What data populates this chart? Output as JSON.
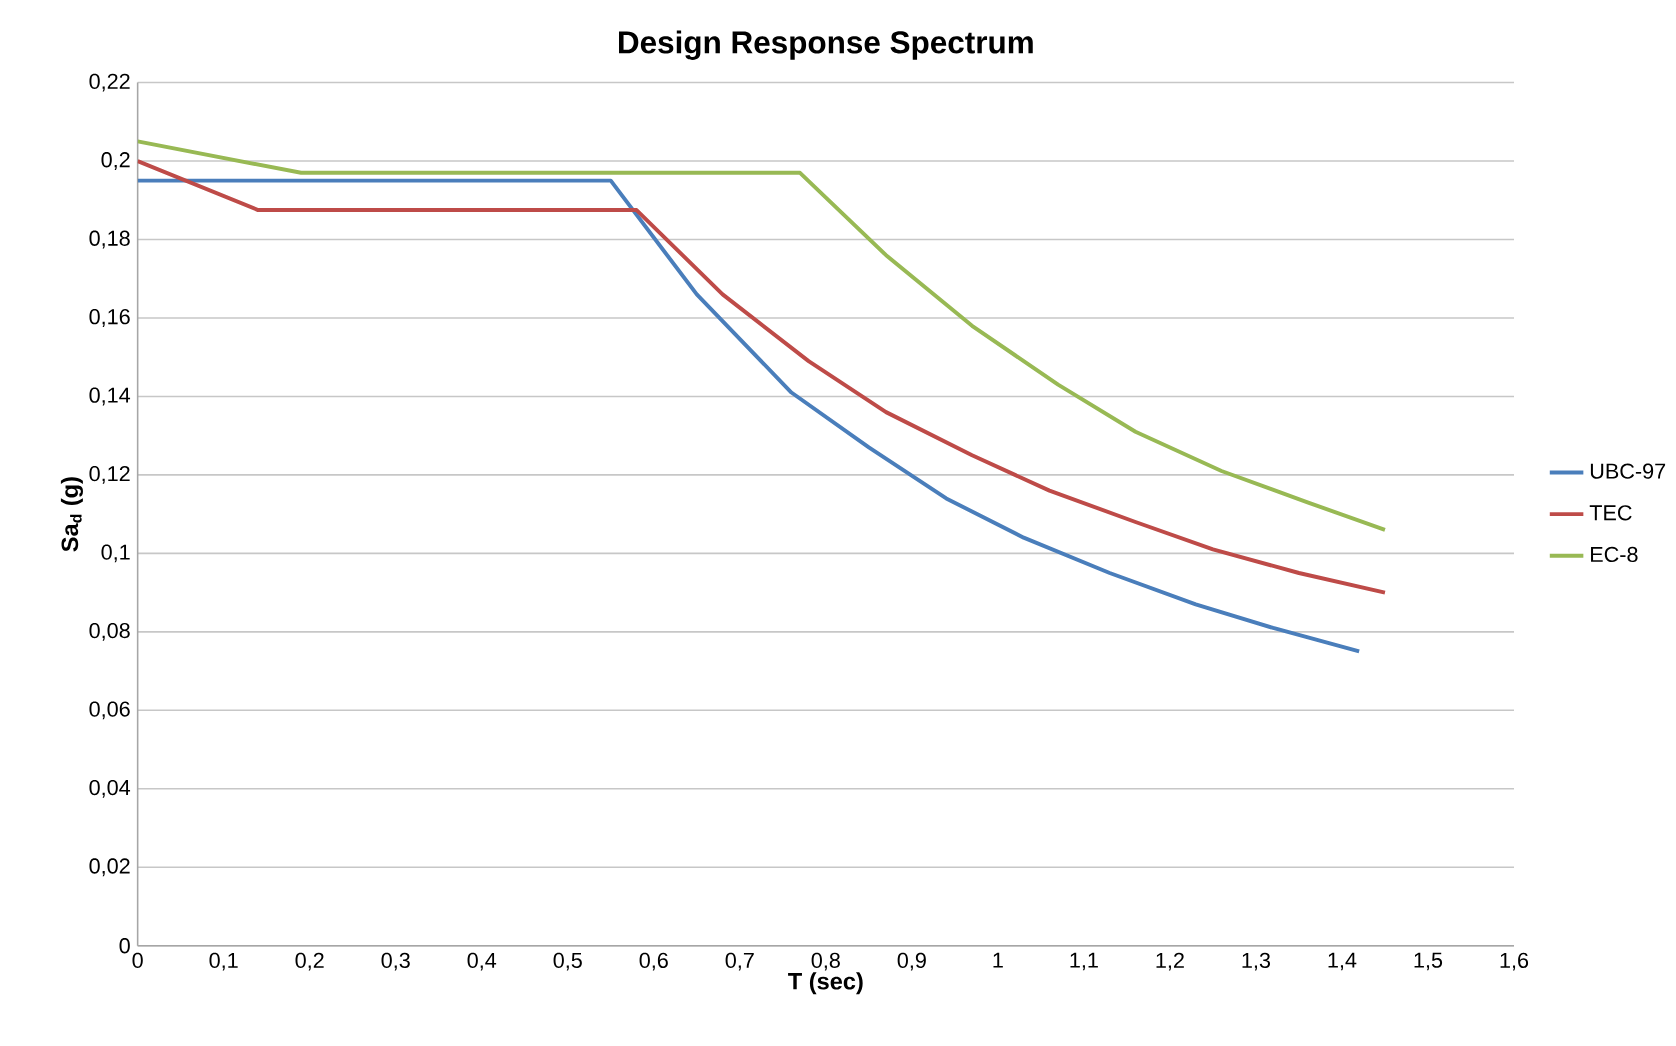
{
  "chart_data": {
    "type": "line",
    "title": "Design Response Spectrum",
    "xlabel": "T (sec)",
    "ylabel": "Sa$_{d}$ (g)",
    "xlim": [
      0,
      1.6
    ],
    "ylim": [
      0,
      0.22
    ],
    "xticks": [
      0,
      {
        "value": 0.1,
        "label": "0,1"
      },
      {
        "value": 0.2,
        "label": "0,2"
      },
      {
        "value": 0.3,
        "label": "0,3"
      },
      {
        "value": 0.4,
        "label": "0,4"
      },
      {
        "value": 0.5,
        "label": "0,5"
      },
      {
        "value": 0.6,
        "label": "0,6"
      },
      {
        "value": 0.7,
        "label": "0,7"
      },
      {
        "value": 0.8,
        "label": "0,8"
      },
      {
        "value": 0.9,
        "label": "0,9"
      },
      1,
      {
        "value": 1.1,
        "label": "1,1"
      },
      {
        "value": 1.2,
        "label": "1,2"
      },
      {
        "value": 1.3,
        "label": "1,3"
      },
      {
        "value": 1.4,
        "label": "1,4"
      },
      {
        "value": 1.5,
        "label": "1,5"
      },
      {
        "value": 1.6,
        "label": "1,6"
      }
    ],
    "yticks": [
      0,
      {
        "value": 0.02,
        "label": "0,02"
      },
      {
        "value": 0.04,
        "label": "0,04"
      },
      {
        "value": 0.06,
        "label": "0,06"
      },
      {
        "value": 0.08,
        "label": "0,08"
      },
      {
        "value": 0.1,
        "label": "0,1"
      },
      {
        "value": 0.12,
        "label": "0,12"
      },
      {
        "value": 0.14,
        "label": "0,14"
      },
      {
        "value": 0.16,
        "label": "0,16"
      },
      {
        "value": 0.18,
        "label": "0,18"
      },
      {
        "value": 0.2,
        "label": "0,2"
      },
      {
        "value": 0.22,
        "label": "0,22"
      }
    ],
    "grid": "y",
    "legend": "right",
    "marker": "none",
    "line_style": "solid",
    "series": [
      {
        "name": "UBC-97",
        "color": "#4a7ebb",
        "x": [
          0,
          0.55,
          0.65,
          0.76,
          0.85,
          0.94,
          1.03,
          1.13,
          1.23,
          1.32,
          1.42
        ],
        "values": [
          0.195,
          0.195,
          0.166,
          0.141,
          0.127,
          0.114,
          0.104,
          0.095,
          0.087,
          0.081,
          0.075
        ]
      },
      {
        "name": "TEC",
        "color": "#be4b48",
        "x": [
          0,
          0.14,
          0.58,
          0.68,
          0.78,
          0.87,
          0.97,
          1.06,
          1.16,
          1.25,
          1.35,
          1.45
        ],
        "values": [
          0.2,
          0.1875,
          0.1875,
          0.166,
          0.149,
          0.136,
          0.125,
          0.116,
          0.108,
          0.101,
          0.095,
          0.09
        ]
      },
      {
        "name": "EC-8",
        "color": "#98b954",
        "x": [
          0,
          0.19,
          0.77,
          0.87,
          0.97,
          1.07,
          1.16,
          1.26,
          1.36,
          1.45
        ],
        "values": [
          0.205,
          0.197,
          0.197,
          0.176,
          0.158,
          0.143,
          0.131,
          0.121,
          0.113,
          0.106
        ]
      }
    ]
  }
}
